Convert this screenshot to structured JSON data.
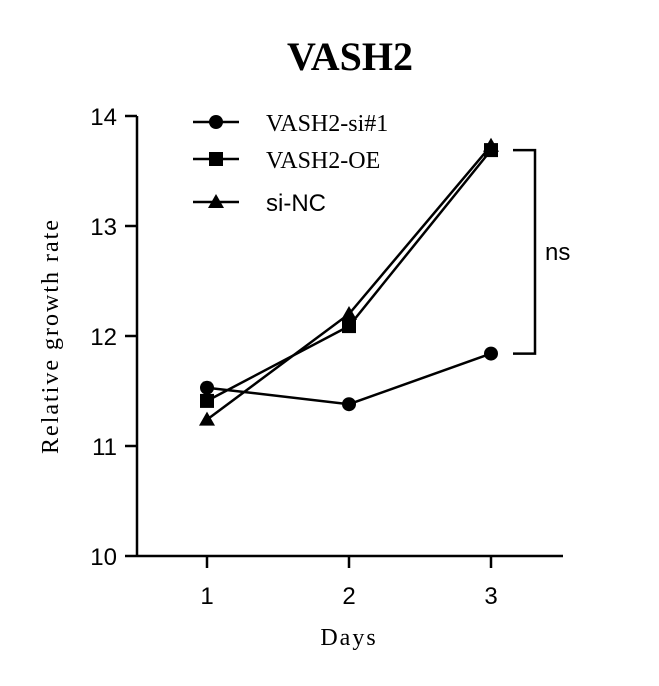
{
  "chart_data": {
    "type": "line",
    "title": "VASH2",
    "xlabel": "Days",
    "ylabel": "Relative growth rate",
    "x": [
      1,
      2,
      3
    ],
    "x_tick_labels": [
      "1",
      "2",
      "3"
    ],
    "y_tick_labels": [
      "10",
      "11",
      "12",
      "13",
      "14"
    ],
    "ylim": [
      10,
      14
    ],
    "grid": false,
    "legend_position": "top-left",
    "series": [
      {
        "name": "VASH2-si#1",
        "marker": "circle",
        "values": [
          11.53,
          11.38,
          11.84
        ]
      },
      {
        "name": "VASH2-OE",
        "marker": "square",
        "values": [
          11.41,
          12.09,
          13.69
        ]
      },
      {
        "name": "si-NC",
        "marker": "triangle",
        "values": [
          11.24,
          12.2,
          13.73
        ]
      }
    ],
    "annotation": {
      "text": "ns",
      "between": [
        "VASH2-OE",
        "VASH2-si#1"
      ],
      "at_x": 3
    },
    "colors": {
      "line": "#000000",
      "background": "#ffffff"
    }
  }
}
